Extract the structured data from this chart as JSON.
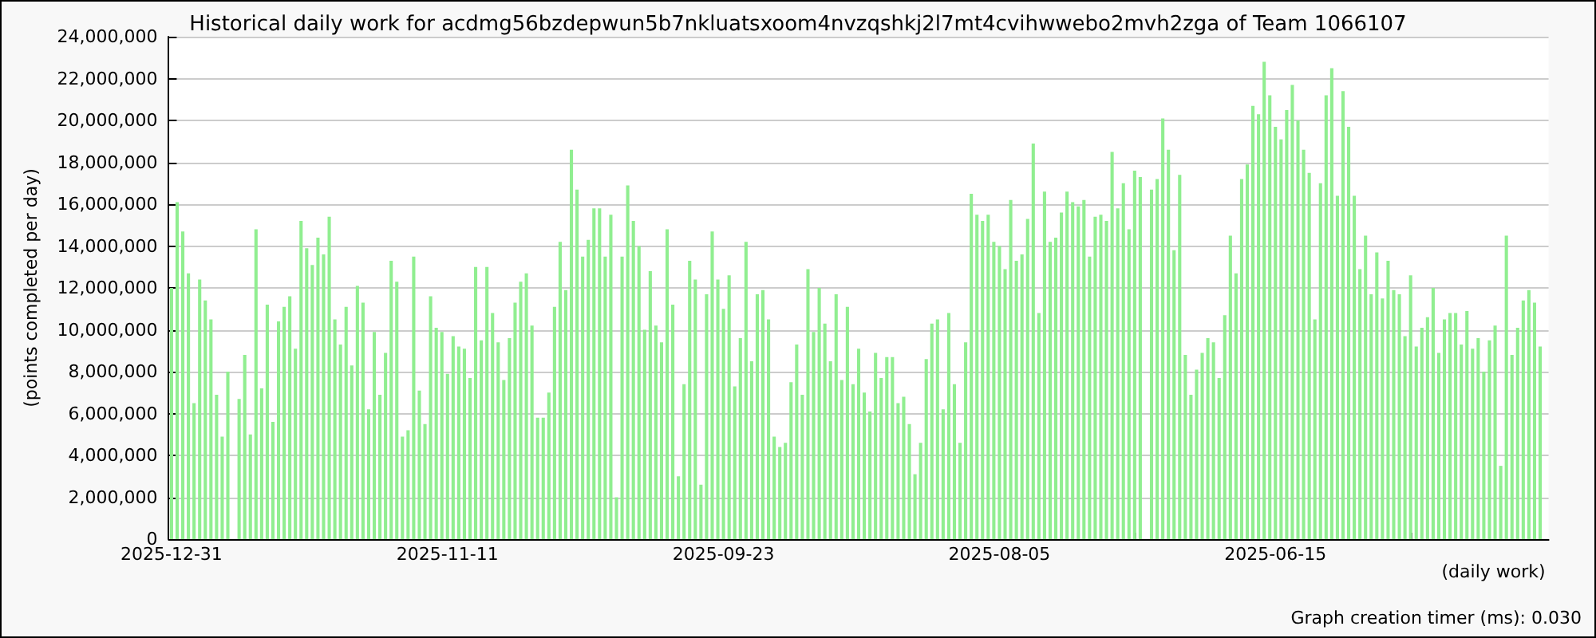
{
  "chart_data": {
    "type": "bar",
    "title": "Historical daily work for acdmg56bzdepwun5b7nkluatsxoom4nvzqshkj2l7mt4cvihwwebo2mvh2zga of Team 1066107",
    "xlabel": "(daily work)",
    "ylabel": "(points completed per day)",
    "annotations": [
      "Graph creation timer (ms): 0.030"
    ],
    "categories": [
      "2025-12-31",
      null,
      null,
      null,
      null,
      null,
      null,
      null,
      null,
      null,
      null,
      null,
      null,
      null,
      null,
      null,
      null,
      null,
      null,
      null,
      null,
      null,
      null,
      null,
      null,
      null,
      null,
      null,
      null,
      null,
      null,
      null,
      null,
      null,
      null,
      null,
      null,
      null,
      null,
      null,
      null,
      null,
      null,
      null,
      null,
      null,
      null,
      null,
      null,
      "2025-11-11",
      null,
      null,
      null,
      null,
      null,
      null,
      null,
      null,
      null,
      null,
      null,
      null,
      null,
      null,
      null,
      null,
      null,
      null,
      null,
      null,
      null,
      null,
      null,
      null,
      null,
      null,
      null,
      null,
      null,
      null,
      null,
      null,
      null,
      null,
      null,
      null,
      null,
      null,
      null,
      null,
      null,
      null,
      null,
      null,
      null,
      null,
      null,
      null,
      "2025-09-23",
      null,
      null,
      null,
      null,
      null,
      null,
      null,
      null,
      null,
      null,
      null,
      null,
      null,
      null,
      null,
      null,
      null,
      null,
      null,
      null,
      null,
      null,
      null,
      null,
      null,
      null,
      null,
      null,
      null,
      null,
      null,
      null,
      null,
      null,
      null,
      null,
      null,
      null,
      null,
      null,
      null,
      null,
      null,
      null,
      null,
      null,
      null,
      null,
      "2025-08-05",
      null,
      null,
      null,
      null,
      null,
      null,
      null,
      null,
      null,
      null,
      null,
      null,
      null,
      null,
      null,
      null,
      null,
      null,
      null,
      null,
      null,
      null,
      null,
      null,
      null,
      null,
      null,
      null,
      null,
      null,
      null,
      null,
      null,
      null,
      null,
      null,
      null,
      null,
      null,
      null,
      null,
      null,
      null,
      null,
      null,
      null,
      null,
      null,
      "2025-06-15",
      null,
      null,
      null,
      null,
      null,
      null,
      null,
      null,
      null,
      null,
      null,
      null,
      null,
      null,
      null,
      null,
      null,
      null,
      null,
      null,
      null,
      null,
      null,
      null,
      null,
      null,
      null,
      null,
      null,
      null,
      null,
      null,
      null,
      null,
      null,
      null,
      null,
      null,
      null,
      null,
      null,
      null,
      null,
      null,
      null,
      null,
      null,
      null
    ],
    "values": [
      12000000,
      16100000,
      14700000,
      12700000,
      6500000,
      12400000,
      11400000,
      10500000,
      6900000,
      4900000,
      8000000,
      null,
      6700000,
      8800000,
      5000000,
      14800000,
      7200000,
      11200000,
      5600000,
      10400000,
      11100000,
      11600000,
      9100000,
      15200000,
      13900000,
      13100000,
      14400000,
      13600000,
      15400000,
      10500000,
      9300000,
      11100000,
      8300000,
      12100000,
      11300000,
      6200000,
      9900000,
      6900000,
      8900000,
      13300000,
      12300000,
      4900000,
      5200000,
      13500000,
      7100000,
      5500000,
      11600000,
      10100000,
      9900000,
      7900000,
      9700000,
      9200000,
      9100000,
      7700000,
      13000000,
      9500000,
      13000000,
      10800000,
      9400000,
      7600000,
      9600000,
      11300000,
      12300000,
      12700000,
      10200000,
      5800000,
      5800000,
      7000000,
      11100000,
      14200000,
      11900000,
      18600000,
      16700000,
      13500000,
      14300000,
      15800000,
      15800000,
      13500000,
      15500000,
      2000000,
      13500000,
      16900000,
      15200000,
      14000000,
      10000000,
      12800000,
      10200000,
      9400000,
      14800000,
      11200000,
      3000000,
      7400000,
      13300000,
      12400000,
      2600000,
      11700000,
      14700000,
      12400000,
      11000000,
      12600000,
      7300000,
      9600000,
      14200000,
      8500000,
      11700000,
      11900000,
      10500000,
      4900000,
      4400000,
      4600000,
      7500000,
      9300000,
      6900000,
      12900000,
      9900000,
      12000000,
      10300000,
      8500000,
      11700000,
      7600000,
      11100000,
      7400000,
      9100000,
      7000000,
      6100000,
      8900000,
      7700000,
      8700000,
      8700000,
      6500000,
      6800000,
      5500000,
      3100000,
      4600000,
      8600000,
      10300000,
      10500000,
      6200000,
      10800000,
      7400000,
      4600000,
      9400000,
      16500000,
      15500000,
      15200000,
      15500000,
      14200000,
      14000000,
      12900000,
      16200000,
      13300000,
      13600000,
      15300000,
      18900000,
      10800000,
      16600000,
      14200000,
      14400000,
      15600000,
      16600000,
      16100000,
      15900000,
      16200000,
      13500000,
      15400000,
      15500000,
      15200000,
      18500000,
      15800000,
      17000000,
      14800000,
      17600000,
      17300000,
      null,
      16700000,
      17200000,
      20100000,
      18600000,
      13800000,
      17400000,
      8800000,
      6900000,
      8100000,
      8900000,
      9600000,
      9400000,
      7700000,
      10700000,
      14500000,
      12700000,
      17200000,
      17900000,
      20700000,
      20300000,
      22800000,
      21200000,
      19700000,
      19100000,
      20500000,
      21700000,
      20000000,
      18600000,
      17500000,
      10500000,
      17000000,
      21200000,
      22500000,
      16400000,
      21400000,
      19700000,
      16400000,
      12900000,
      14500000,
      11700000,
      13700000,
      11500000,
      13300000,
      11900000,
      11700000,
      9700000,
      12600000,
      9200000,
      10100000,
      10600000,
      12000000,
      8900000,
      10500000,
      10800000,
      10800000,
      9300000,
      10900000,
      9100000,
      9600000,
      8000000,
      9500000,
      10200000,
      3500000,
      14500000,
      8800000,
      10100000,
      11400000,
      11900000,
      11300000,
      9200000,
      null
    ],
    "color": "#90ee90",
    "ylim": [
      0,
      24000000
    ],
    "yticks": [
      {
        "value": 0,
        "label": "0"
      },
      {
        "value": 2000000,
        "label": "2,000,000"
      },
      {
        "value": 4000000,
        "label": "4,000,000"
      },
      {
        "value": 6000000,
        "label": "6,000,000"
      },
      {
        "value": 8000000,
        "label": "8,000,000"
      },
      {
        "value": 10000000,
        "label": "10,000,000"
      },
      {
        "value": 12000000,
        "label": "12,000,000"
      },
      {
        "value": 14000000,
        "label": "14,000,000"
      },
      {
        "value": 16000000,
        "label": "16,000,000"
      },
      {
        "value": 18000000,
        "label": "18,000,000"
      },
      {
        "value": 20000000,
        "label": "20,000,000"
      },
      {
        "value": 22000000,
        "label": "22,000,000"
      },
      {
        "value": 24000000,
        "label": "24,000,000"
      }
    ],
    "grid": "y"
  }
}
